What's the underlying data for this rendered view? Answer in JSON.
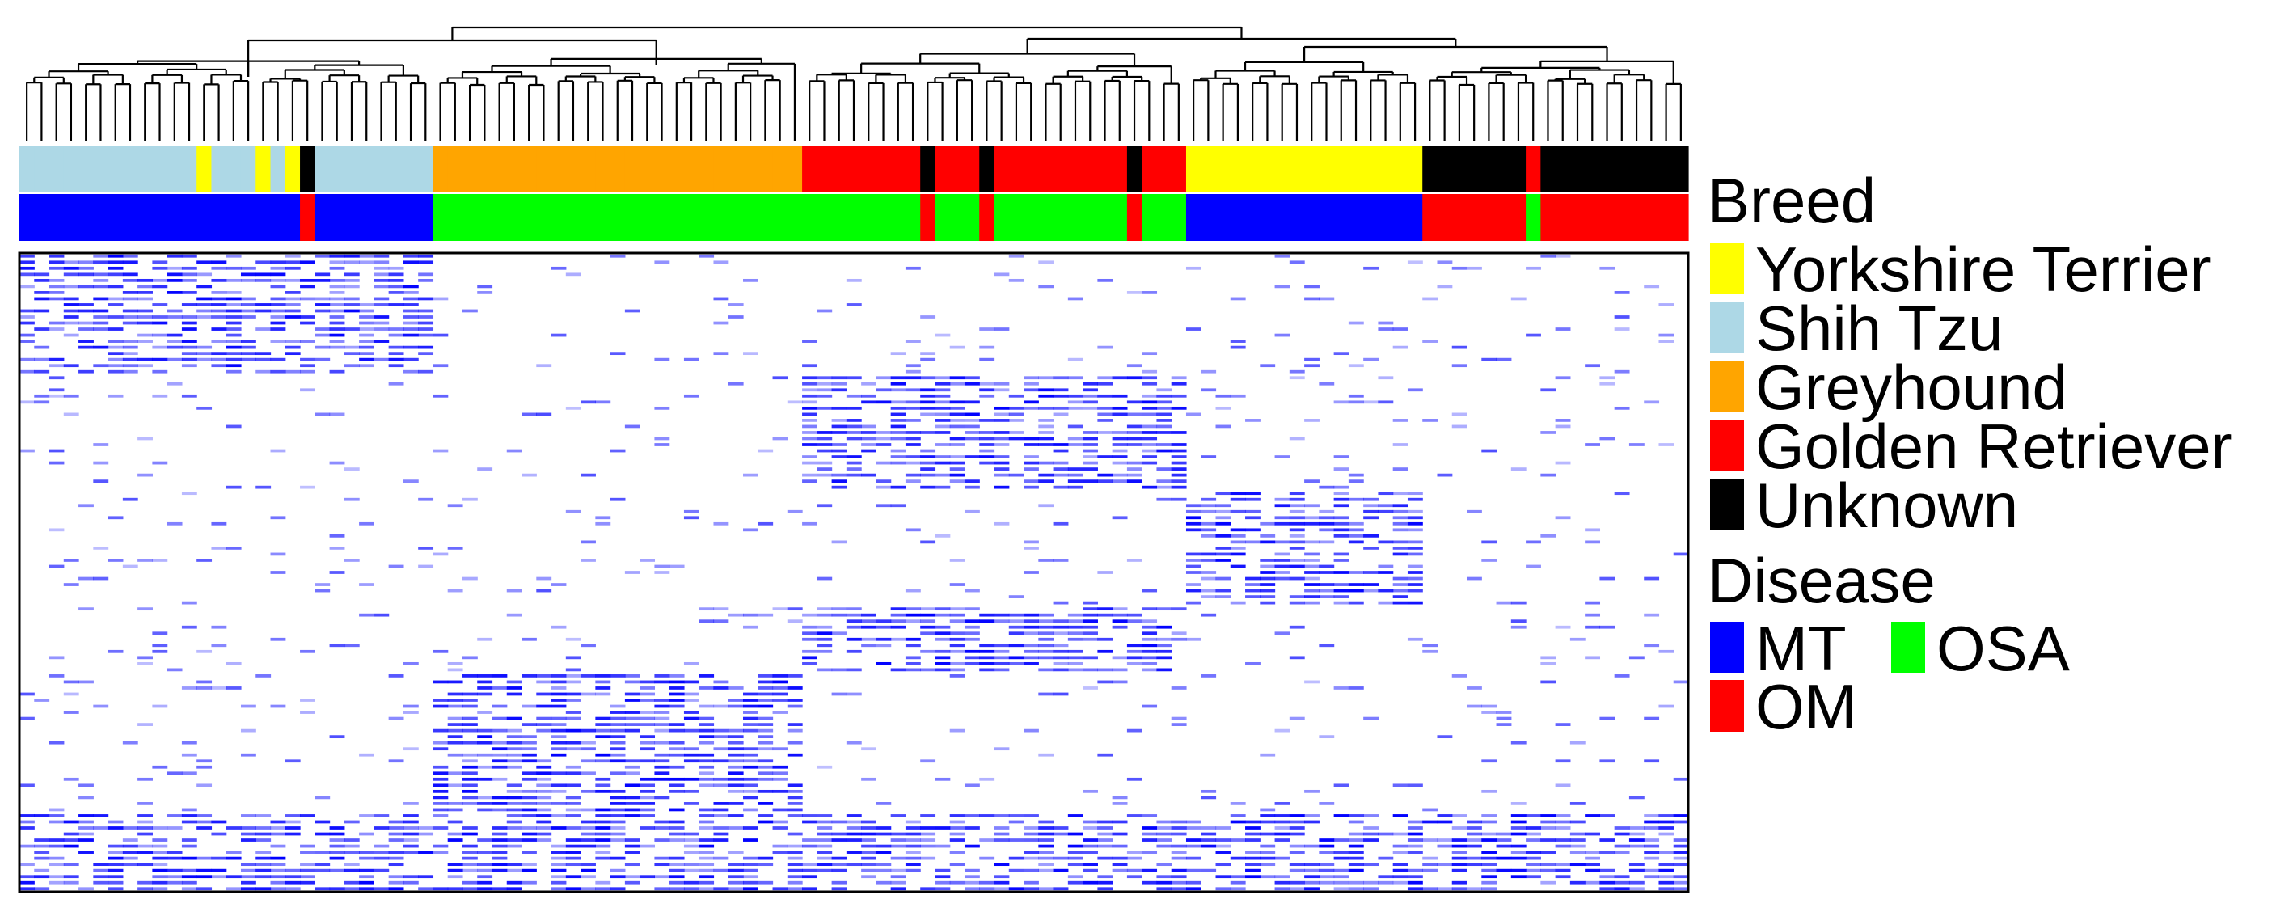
{
  "chart_data": {
    "type": "heatmap",
    "title": "",
    "xlabel": "",
    "ylabel": "",
    "samples": 113,
    "colors": {
      "low": "#ffffff",
      "high": "#0000ff",
      "border": "#000000"
    },
    "annotation_tracks": [
      "Breed",
      "Disease"
    ],
    "legend": {
      "placement": "right",
      "breed": {
        "title": "Breed",
        "items": [
          {
            "label": "Yorkshire Terrier",
            "color": "#ffff00"
          },
          {
            "label": "Shih Tzu",
            "color": "#add8e6"
          },
          {
            "label": "Greyhound",
            "color": "#ffa500"
          },
          {
            "label": "Golden Retriever",
            "color": "#ff0000"
          },
          {
            "label": "Unknown",
            "color": "#000000"
          }
        ]
      },
      "disease": {
        "title": "Disease",
        "items": [
          {
            "label": "MT",
            "color": "#0000ff"
          },
          {
            "label": "OSA",
            "color": "#00ff00"
          },
          {
            "label": "OM",
            "color": "#ff0000"
          }
        ]
      }
    },
    "clusters": [
      {
        "breed": "Shih Tzu",
        "disease": "MT",
        "n": 28
      },
      {
        "breed": "Greyhound",
        "disease": "OSA",
        "n": 25
      },
      {
        "breed": "Golden Retriever",
        "disease": "OSA",
        "n": 26
      },
      {
        "breed": "Yorkshire Terrier",
        "disease": "MT",
        "n": 16
      },
      {
        "breed": "Unknown",
        "disease": "OM",
        "n": 18
      }
    ],
    "sample_annotation_exceptions": [
      {
        "index": 12,
        "breed": "Yorkshire Terrier",
        "disease": "MT"
      },
      {
        "index": 16,
        "breed": "Yorkshire Terrier",
        "disease": "MT"
      },
      {
        "index": 18,
        "breed": "Yorkshire Terrier",
        "disease": "MT"
      },
      {
        "index": 19,
        "breed": "Unknown",
        "disease": "OM"
      },
      {
        "index": 61,
        "breed": "Unknown",
        "disease": "OM"
      },
      {
        "index": 65,
        "breed": "Unknown",
        "disease": "OM"
      },
      {
        "index": 75,
        "breed": "Unknown",
        "disease": "OM"
      },
      {
        "index": 102,
        "breed": "Golden Retriever",
        "disease": "OSA"
      }
    ],
    "gene_blocks": [
      {
        "cluster": 0,
        "rows": [
          0,
          19
        ]
      },
      {
        "cluster": 2,
        "rows": [
          20,
          38
        ]
      },
      {
        "cluster": 3,
        "rows": [
          39,
          57
        ]
      },
      {
        "cluster": 2,
        "rows": [
          58,
          68
        ]
      },
      {
        "cluster": 1,
        "rows": [
          69,
          91
        ]
      },
      {
        "cluster": "all",
        "rows": [
          92,
          104
        ]
      }
    ],
    "gene_rows": 105
  }
}
